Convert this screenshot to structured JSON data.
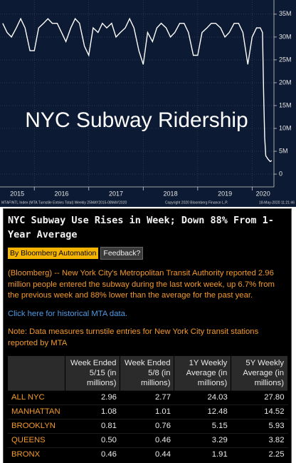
{
  "chart_data": {
    "type": "line",
    "title": "NYC Subway Ridership",
    "source": "MTAFINTL Index (MTA Turnstile Entries Total) Weekly 25MAY2015-08MAY2020",
    "copyright": "Copyright 2020 Bloomberg Finance L.P.",
    "timestamp": "18-May-2020 11:21:46",
    "color": "#ffffff",
    "background": "#0c1a33",
    "grid": true,
    "x": [
      2015.42,
      2015.5,
      2015.58,
      2015.67,
      2015.75,
      2015.83,
      2015.92,
      2016.0,
      2016.08,
      2016.17,
      2016.25,
      2016.33,
      2016.42,
      2016.5,
      2016.58,
      2016.67,
      2016.75,
      2016.83,
      2016.92,
      2017.0,
      2017.08,
      2017.17,
      2017.25,
      2017.33,
      2017.42,
      2017.5,
      2017.58,
      2017.67,
      2017.75,
      2017.83,
      2017.92,
      2018.0,
      2018.08,
      2018.17,
      2018.25,
      2018.33,
      2018.42,
      2018.5,
      2018.58,
      2018.67,
      2018.75,
      2018.83,
      2018.92,
      2019.0,
      2019.08,
      2019.17,
      2019.25,
      2019.33,
      2019.42,
      2019.5,
      2019.58,
      2019.67,
      2019.75,
      2019.83,
      2019.92,
      2020.0,
      2020.08,
      2020.15,
      2020.19,
      2020.21,
      2020.23,
      2020.25,
      2020.29,
      2020.33,
      2020.36
    ],
    "values": [
      33,
      31,
      30,
      32,
      34,
      32,
      27,
      27,
      32,
      33,
      34,
      33,
      33,
      31,
      29,
      32,
      34,
      33,
      28,
      26,
      32,
      31,
      33,
      32,
      33,
      30,
      31,
      32,
      34,
      32,
      27,
      24,
      31,
      29,
      32,
      33,
      32,
      30,
      31,
      33,
      33,
      31,
      26,
      26,
      31,
      32,
      33,
      33,
      32,
      30,
      31,
      33,
      33,
      31,
      24,
      30,
      32,
      32,
      31,
      18,
      8,
      4,
      3.3,
      2.77,
      2.96
    ],
    "xlim": [
      2015.37,
      2020.4
    ],
    "xticks": [
      {
        "value": 2015,
        "label": "2015"
      },
      {
        "value": 2016,
        "label": "2016"
      },
      {
        "value": 2017,
        "label": "2017"
      },
      {
        "value": 2018,
        "label": "2018"
      },
      {
        "value": 2019,
        "label": "2019"
      },
      {
        "value": 2020,
        "label": "2020"
      }
    ],
    "ylim": [
      -2.8,
      38.1
    ],
    "yticks": [
      0,
      {
        "value": 5,
        "label": "5M"
      },
      {
        "value": 10,
        "label": "10M"
      },
      {
        "value": 15,
        "label": "15M"
      },
      {
        "value": 20,
        "label": "20M"
      },
      {
        "value": 25,
        "label": "25M"
      },
      {
        "value": 30,
        "label": "30M"
      },
      {
        "value": 35,
        "label": "35M"
      }
    ]
  },
  "article": {
    "headline": "NYC Subway Use Rises in Week; Down 88% From 1-Year Average",
    "byline": "By Bloomberg Automation",
    "feedback": "Feedback?",
    "body": "(Bloomberg) -- New York City's Metropolitan Transit Authority reported 2.96 million people entered the subway during the last work week, up 6.7% from the previous week and 88% lower than the average for the past year.",
    "link": "Click here for historical MTA data.",
    "note": "Note: Data measures turnstile entries for New York City transit stations reported by MTA",
    "table": {
      "columns": [
        "Week Ended 5/15 (in millions)",
        "Week Ended 5/8 (in millions)",
        "1Y Weekly Average (in millions)",
        "5Y Weekly Average (in millions)"
      ],
      "rows": [
        [
          "ALL NYC",
          "2.96",
          "2.77",
          "24.03",
          "27.80"
        ],
        [
          "MANHATTAN",
          "1.08",
          "1.01",
          "12.48",
          "14.52"
        ],
        [
          "BROOKLYN",
          "0.81",
          "0.76",
          "5.15",
          "5.93"
        ],
        [
          "QUEENS",
          "0.50",
          "0.46",
          "3.29",
          "3.82"
        ],
        [
          "BRONX",
          "0.46",
          "0.44",
          "1.91",
          "2.25"
        ]
      ]
    }
  }
}
